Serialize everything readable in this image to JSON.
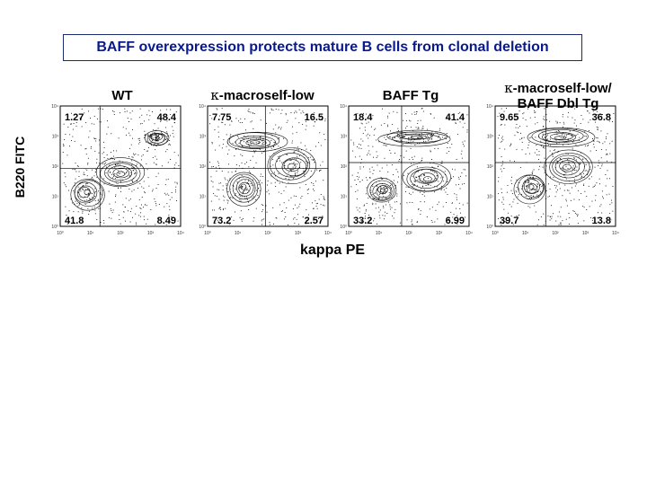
{
  "title": "BAFF overexpression protects mature B cells from clonal deletion",
  "chart_data": {
    "type": "contour",
    "ylabel": "B220 FITC",
    "xlabel": "kappa PE",
    "axis_scale": "log",
    "axis_range": [
      1,
      10000
    ],
    "x_tick_labels": [
      "10⁰",
      "10¹",
      "10²",
      "10³",
      "10⁴"
    ],
    "y_tick_labels": [
      "10⁰",
      "10¹",
      "10²",
      "10³",
      "10⁴"
    ],
    "panels": [
      {
        "title_line1": "WT",
        "title_line2": "",
        "kappa_prefix": false,
        "quadrants": {
          "upper_left": "1.27",
          "upper_right": "48.4",
          "lower_left": "41.8",
          "lower_right": "8.49"
        }
      },
      {
        "title_line1": "-macroself-low",
        "title_line2": "",
        "kappa_prefix": true,
        "quadrants": {
          "upper_left": "7.75",
          "upper_right": "16.5",
          "lower_left": "73.2",
          "lower_right": "2.57"
        }
      },
      {
        "title_line1": "BAFF Tg",
        "title_line2": "",
        "kappa_prefix": false,
        "quadrants": {
          "upper_left": "18.4",
          "upper_right": "41.4",
          "lower_left": "33.2",
          "lower_right": "6.99"
        }
      },
      {
        "title_line1": "-macroself-low/",
        "title_line2": "BAFF Dbl Tg",
        "kappa_prefix": true,
        "quadrants": {
          "upper_left": "9.65",
          "upper_right": "36.8",
          "lower_left": "39.7",
          "lower_right": "13.8"
        }
      }
    ]
  }
}
